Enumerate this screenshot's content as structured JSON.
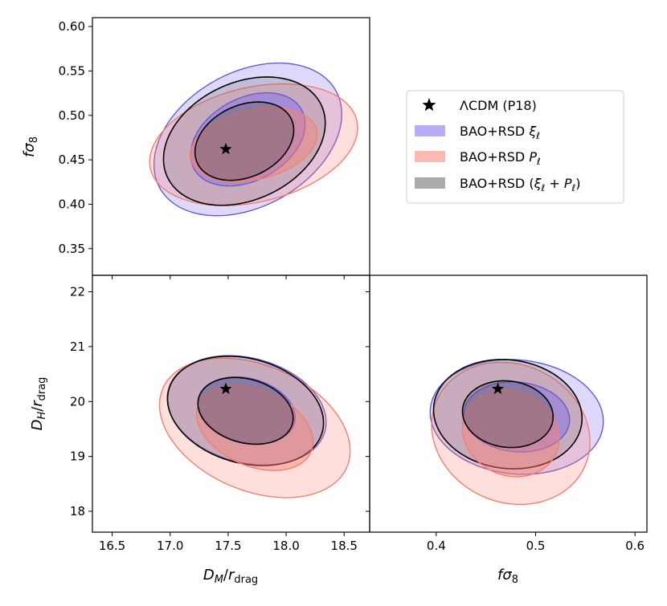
{
  "chart_data": {
    "type": "triangle-contour",
    "fiducial": {
      "name": "ΛCDM (P18)",
      "DM_rdrag": 17.48,
      "DH_rdrag": 20.23,
      "fsigma8": 0.462
    },
    "legend": {
      "placement": "right of top panel",
      "entries": [
        {
          "key": "fid",
          "parts": [
            {
              "t": "ΛCDM (P18)",
              "i": false
            }
          ]
        },
        {
          "key": "xi",
          "parts": [
            {
              "t": "BAO+RSD ",
              "i": false
            },
            {
              "t": "ξ",
              "i": true
            },
            {
              "t": "ℓ",
              "i": true,
              "sub": true
            }
          ]
        },
        {
          "key": "pk",
          "parts": [
            {
              "t": "BAO+RSD ",
              "i": false
            },
            {
              "t": "P",
              "i": true
            },
            {
              "t": "ℓ",
              "i": true,
              "sub": true
            }
          ]
        },
        {
          "key": "comb",
          "parts": [
            {
              "t": "BAO+RSD (",
              "i": false
            },
            {
              "t": "ξ",
              "i": true
            },
            {
              "t": "ℓ",
              "i": true,
              "sub": true
            },
            {
              "t": " + ",
              "i": false
            },
            {
              "t": "P",
              "i": true
            },
            {
              "t": "ℓ",
              "i": true,
              "sub": true
            },
            {
              "t": ")",
              "i": false
            }
          ]
        }
      ]
    },
    "axes": {
      "DM": {
        "range": [
          16.33,
          18.72
        ],
        "ticks": [
          16.5,
          17.0,
          17.5,
          18.0,
          18.5
        ],
        "tick_labels": [
          "16.5",
          "17.0",
          "17.5",
          "18.0",
          "18.5"
        ],
        "label": [
          {
            "t": "D",
            "i": true
          },
          {
            "t": "M",
            "i": true,
            "sub": true
          },
          {
            "t": "/",
            "i": false
          },
          {
            "t": "r",
            "i": true
          },
          {
            "t": "drag",
            "i": false,
            "sub": true
          }
        ]
      },
      "fs8_y": {
        "range": [
          0.32,
          0.61
        ],
        "ticks": [
          0.35,
          0.4,
          0.45,
          0.5,
          0.55,
          0.6
        ],
        "tick_labels": [
          "0.35",
          "0.40",
          "0.45",
          "0.50",
          "0.55",
          "0.60"
        ],
        "label": [
          {
            "t": "f",
            "i": true
          },
          {
            "t": "σ",
            "i": true
          },
          {
            "t": "8",
            "i": false,
            "sub": true
          }
        ]
      },
      "DH": {
        "range": [
          17.62,
          22.3
        ],
        "ticks": [
          18,
          19,
          20,
          21,
          22
        ],
        "tick_labels": [
          "18",
          "19",
          "20",
          "21",
          "22"
        ],
        "label": [
          {
            "t": "D",
            "i": true
          },
          {
            "t": "H",
            "i": true,
            "sub": true
          },
          {
            "t": "/",
            "i": false
          },
          {
            "t": "r",
            "i": true
          },
          {
            "t": "drag",
            "i": false,
            "sub": true
          }
        ]
      },
      "fs8_x": {
        "range": [
          0.333,
          0.612
        ],
        "ticks": [
          0.4,
          0.5,
          0.6
        ],
        "tick_labels": [
          "0.4",
          "0.5",
          "0.6"
        ],
        "label": [
          {
            "t": "f",
            "i": true
          },
          {
            "t": "σ",
            "i": true
          },
          {
            "t": "8",
            "i": false,
            "sub": true
          }
        ]
      }
    },
    "panels": [
      {
        "id": "fs8-vs-DM",
        "x_axis": "DM",
        "y_axis": "fs8_y",
        "datasets": [
          {
            "key": "xi",
            "center": [
              17.67,
              0.473
            ],
            "sigma": [
              0.325,
              0.0345
            ],
            "rho": 0.33
          },
          {
            "key": "pk",
            "center": [
              17.72,
              0.467
            ],
            "sigma": [
              0.36,
              0.0275
            ],
            "rho": 0.28
          },
          {
            "key": "comb",
            "center": [
              17.64,
              0.471
            ],
            "sigma": [
              0.28,
              0.029
            ],
            "rho": 0.28
          }
        ]
      },
      {
        "id": "DH-vs-DM",
        "x_axis": "DM",
        "y_axis": "DH",
        "datasets": [
          {
            "key": "xi",
            "center": [
              17.66,
              19.84
            ],
            "sigma": [
              0.275,
              0.4
            ],
            "rho": -0.22
          },
          {
            "key": "pk",
            "center": [
              17.73,
              19.52
            ],
            "sigma": [
              0.33,
              0.51
            ],
            "rho": -0.33
          },
          {
            "key": "comb",
            "center": [
              17.65,
              19.83
            ],
            "sigma": [
              0.27,
              0.4
            ],
            "rho": -0.22
          }
        ]
      },
      {
        "id": "DH-vs-fs8",
        "x_axis": "fs8_x",
        "y_axis": "DH",
        "datasets": [
          {
            "key": "xi",
            "center": [
              0.481,
              19.72
            ],
            "sigma": [
              0.035,
              0.42
            ],
            "rho": -0.08
          },
          {
            "key": "pk",
            "center": [
              0.475,
              19.42
            ],
            "sigma": [
              0.032,
              0.52
            ],
            "rho": -0.12
          },
          {
            "key": "comb",
            "center": [
              0.472,
              19.77
            ],
            "sigma": [
              0.03,
              0.4
            ],
            "rho": -0.08
          }
        ]
      }
    ],
    "styles": {
      "xi": {
        "fill": "#7b68ee",
        "stroke": "#6a5acd",
        "alpha_outer": 0.25,
        "alpha_inner": 0.45
      },
      "pk": {
        "fill": "#fa8072",
        "stroke": "#f08070",
        "alpha_outer": 0.25,
        "alpha_inner": 0.45
      },
      "comb": {
        "fill": "#555555",
        "stroke": "#000000",
        "alpha_outer": 0.2,
        "alpha_inner": 0.35
      }
    }
  }
}
